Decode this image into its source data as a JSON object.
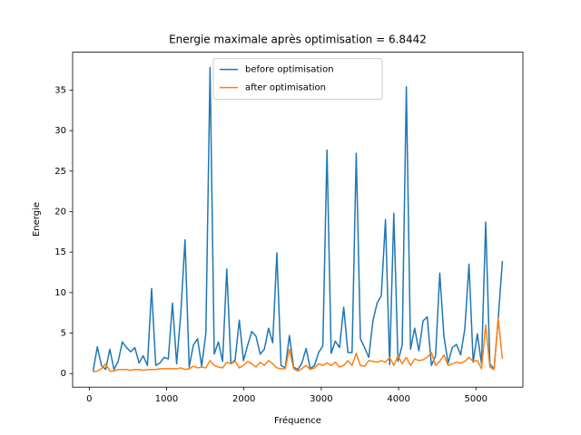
{
  "chart_data": {
    "type": "line",
    "title": "Energie maximale après optimisation = 6.8442",
    "x_label": "Fréquence",
    "y_label": "Energie",
    "x": [
      50,
      104,
      158,
      212,
      266,
      320,
      374,
      428,
      482,
      536,
      590,
      644,
      698,
      752,
      806,
      860,
      914,
      968,
      1022,
      1076,
      1130,
      1184,
      1238,
      1292,
      1346,
      1400,
      1454,
      1508,
      1562,
      1616,
      1670,
      1724,
      1778,
      1832,
      1886,
      1940,
      1994,
      2048,
      2102,
      2156,
      2210,
      2264,
      2318,
      2372,
      2426,
      2480,
      2534,
      2588,
      2642,
      2696,
      2750,
      2804,
      2858,
      2912,
      2966,
      3020,
      3074,
      3128,
      3182,
      3236,
      3290,
      3344,
      3398,
      3452,
      3506,
      3560,
      3614,
      3668,
      3722,
      3776,
      3830,
      3884,
      3938,
      3992,
      4046,
      4100,
      4154,
      4208,
      4262,
      4316,
      4370,
      4424,
      4478,
      4532,
      4586,
      4640,
      4694,
      4748,
      4802,
      4856,
      4910,
      4964,
      5018,
      5072,
      5126,
      5180,
      5234,
      5288,
      5342
    ],
    "series": [
      {
        "name": "before optimisation",
        "color": "#1f77b4",
        "values": [
          0.3,
          3.3,
          1.0,
          0.5,
          3.0,
          0.5,
          1.5,
          3.9,
          3.2,
          2.7,
          3.2,
          1.3,
          2.2,
          1.0,
          10.5,
          1.0,
          1.3,
          2.0,
          1.8,
          8.7,
          1.2,
          7.5,
          16.5,
          0.8,
          3.5,
          4.3,
          0.9,
          5.0,
          37.8,
          2.4,
          3.9,
          1.5,
          12.9,
          1.2,
          1.7,
          6.6,
          1.6,
          3.5,
          5.2,
          4.6,
          2.4,
          3.0,
          5.6,
          3.8,
          14.9,
          1.0,
          0.7,
          4.7,
          0.8,
          0.5,
          1.3,
          3.1,
          0.6,
          1.0,
          2.6,
          3.4,
          27.6,
          2.5,
          4.0,
          3.2,
          8.2,
          2.6,
          2.6,
          27.2,
          4.3,
          3.2,
          2.0,
          6.5,
          8.7,
          9.6,
          19.0,
          1.1,
          19.8,
          1.5,
          3.5,
          35.4,
          3.0,
          5.6,
          2.8,
          6.5,
          7.0,
          1.0,
          2.2,
          12.4,
          4.6,
          1.3,
          3.2,
          3.6,
          2.3,
          5.5,
          13.5,
          1.4,
          4.9,
          1.2,
          18.7,
          1.2,
          0.5,
          6.8,
          13.9
        ]
      },
      {
        "name": "after optimisation",
        "color": "#ff7f0e",
        "values": [
          0.2,
          0.3,
          0.6,
          1.2,
          0.3,
          0.3,
          0.5,
          0.5,
          0.5,
          0.4,
          0.5,
          0.5,
          0.4,
          0.5,
          0.5,
          0.5,
          0.6,
          0.6,
          0.6,
          0.6,
          0.6,
          0.7,
          0.5,
          0.6,
          0.9,
          0.7,
          0.8,
          0.7,
          1.6,
          1.0,
          0.8,
          0.7,
          1.4,
          1.2,
          1.5,
          0.7,
          1.0,
          1.5,
          1.2,
          0.8,
          1.4,
          1.0,
          1.6,
          1.2,
          0.7,
          0.6,
          0.6,
          3.0,
          0.6,
          0.3,
          0.6,
          1.0,
          0.5,
          0.7,
          1.2,
          1.0,
          1.3,
          1.0,
          1.4,
          0.8,
          1.0,
          1.6,
          1.0,
          2.5,
          1.0,
          0.9,
          1.6,
          1.5,
          1.4,
          1.6,
          1.4,
          2.0,
          1.0,
          2.2,
          1.2,
          2.0,
          1.0,
          1.8,
          1.6,
          1.7,
          2.0,
          2.6,
          1.0,
          1.5,
          2.3,
          1.0,
          1.2,
          1.4,
          1.3,
          1.5,
          2.0,
          1.5,
          1.6,
          0.6,
          6.0,
          0.8,
          0.5,
          6.8,
          1.8
        ]
      }
    ],
    "xlim": [
      -215,
      5607
    ],
    "ylim": [
      -1.68,
      39.68
    ],
    "xticks": [
      0,
      1000,
      2000,
      3000,
      4000,
      5000
    ],
    "yticks": [
      0,
      5,
      10,
      15,
      20,
      25,
      30,
      35
    ],
    "legend": "upper center",
    "grid": false
  }
}
